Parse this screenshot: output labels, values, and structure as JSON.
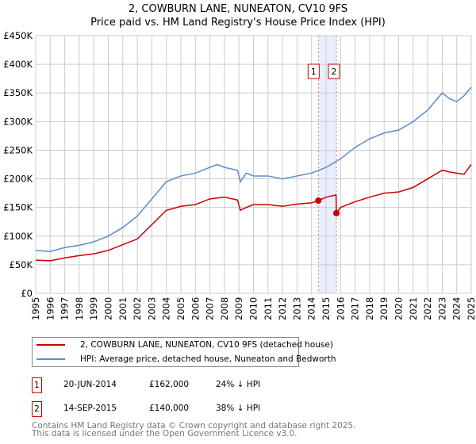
{
  "title": "2, COWBURN LANE, NUNEATON, CV10 9FS",
  "subtitle": "Price paid vs. HM Land Registry's House Price Index (HPI)",
  "colors": {
    "property": "#cc0000",
    "hpi": "#5b8bd0",
    "highlight": "#e8eefb"
  },
  "chart_data": {
    "type": "line",
    "ylim": [
      0,
      450000
    ],
    "xlim": [
      1995,
      2025
    ],
    "yticks": [
      {
        "v": 0,
        "label": "£0"
      },
      {
        "v": 50000,
        "label": "£50K"
      },
      {
        "v": 100000,
        "label": "£100K"
      },
      {
        "v": 150000,
        "label": "£150K"
      },
      {
        "v": 200000,
        "label": "£200K"
      },
      {
        "v": 250000,
        "label": "£250K"
      },
      {
        "v": 300000,
        "label": "£300K"
      },
      {
        "v": 350000,
        "label": "£350K"
      },
      {
        "v": 400000,
        "label": "£400K"
      },
      {
        "v": 450000,
        "label": "£450K"
      }
    ],
    "xticks": [
      "1995",
      "1996",
      "1997",
      "1998",
      "1999",
      "2000",
      "2001",
      "2002",
      "2003",
      "2004",
      "2005",
      "2006",
      "2007",
      "2008",
      "2009",
      "2010",
      "2011",
      "2012",
      "2013",
      "2014",
      "2015",
      "2016",
      "2017",
      "2018",
      "2019",
      "2020",
      "2021",
      "2022",
      "2023",
      "2024",
      "2025"
    ],
    "series": [
      {
        "name": "2, COWBURN LANE, NUNEATON, CV10 9FS (detached house)",
        "color": "#cc0000",
        "x": [
          1995,
          1996,
          1997,
          1998,
          1999,
          2000,
          2001,
          2002,
          2003,
          2004,
          2005,
          2006,
          2007,
          2008,
          2008.9,
          2009.1,
          2009.5,
          2010,
          2011,
          2012,
          2013,
          2014,
          2014.47,
          2015,
          2015.69,
          2015.71,
          2016,
          2017,
          2018,
          2019,
          2020,
          2021,
          2022,
          2023,
          2023.5,
          2024,
          2024.5,
          2025
        ],
        "y": [
          58000,
          57000,
          62000,
          66000,
          69000,
          75000,
          85000,
          95000,
          120000,
          145000,
          152000,
          155000,
          165000,
          168000,
          163000,
          145000,
          150000,
          155000,
          155000,
          152000,
          156000,
          158000,
          162000,
          168000,
          172000,
          140000,
          150000,
          160000,
          168000,
          175000,
          177000,
          185000,
          200000,
          215000,
          212000,
          210000,
          208000,
          225000
        ]
      },
      {
        "name": "HPI: Average price, detached house, Nuneaton and Bedworth",
        "color": "#5b8bd0",
        "x": [
          1995,
          1996,
          1997,
          1998,
          1999,
          2000,
          2001,
          2002,
          2003,
          2004,
          2005,
          2006,
          2007,
          2007.5,
          2008,
          2008.9,
          2009.1,
          2009.5,
          2010,
          2011,
          2012,
          2013,
          2014,
          2015,
          2016,
          2017,
          2018,
          2019,
          2020,
          2021,
          2022,
          2023,
          2023.5,
          2024,
          2024.5,
          2025
        ],
        "y": [
          75000,
          73000,
          80000,
          84000,
          90000,
          100000,
          115000,
          135000,
          165000,
          195000,
          205000,
          210000,
          220000,
          225000,
          220000,
          215000,
          195000,
          210000,
          205000,
          205000,
          200000,
          205000,
          210000,
          220000,
          235000,
          255000,
          270000,
          280000,
          285000,
          300000,
          320000,
          350000,
          340000,
          335000,
          345000,
          360000
        ]
      }
    ],
    "sales": [
      {
        "id": "1",
        "x": 2014.47,
        "y": 162000
      },
      {
        "id": "2",
        "x": 2015.71,
        "y": 140000
      }
    ]
  },
  "legend": {
    "property": "2, COWBURN LANE, NUNEATON, CV10 9FS (detached house)",
    "hpi": "HPI: Average price, detached house, Nuneaton and Bedworth"
  },
  "transactions": [
    {
      "id": "1",
      "date": "20-JUN-2014",
      "price": "£162,000",
      "hpi": "24% ↓ HPI"
    },
    {
      "id": "2",
      "date": "14-SEP-2015",
      "price": "£140,000",
      "hpi": "38% ↓ HPI"
    }
  ],
  "footer": {
    "line1": "Contains HM Land Registry data © Crown copyright and database right 2025.",
    "line2": "This data is licensed under the Open Government Licence v3.0."
  }
}
